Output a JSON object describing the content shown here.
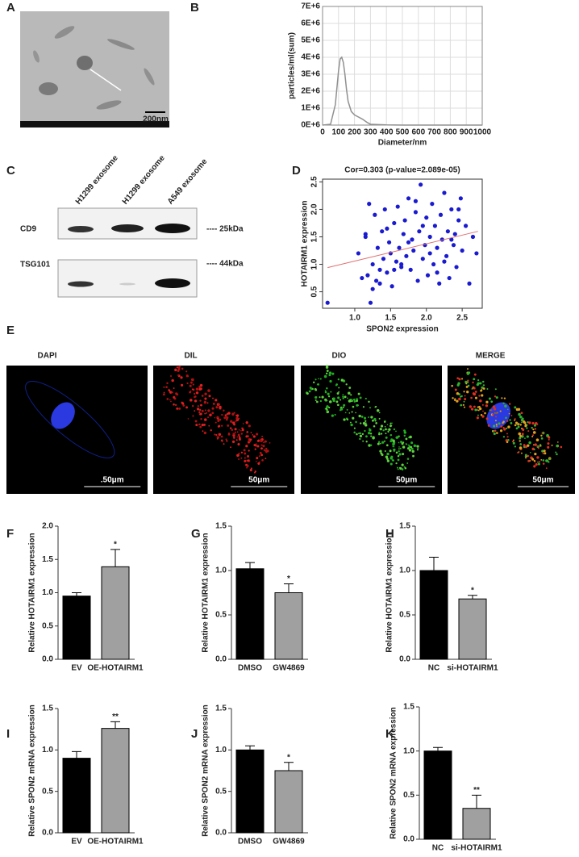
{
  "panel_labels": [
    "A",
    "B",
    "C",
    "D",
    "E",
    "F",
    "G",
    "H",
    "I",
    "J",
    "K"
  ],
  "micrograph": {
    "scale_bar": "200nm"
  },
  "western_blot": {
    "lanes": [
      "H1299 exosome",
      "H1299 exosome",
      "A549 exosome"
    ],
    "rows": [
      {
        "name": "CD9",
        "size": "---- 25kDa"
      },
      {
        "name": "TSG101",
        "size": "---- 44kDa"
      }
    ]
  },
  "fluorescence": {
    "channels": [
      {
        "name": "DAPI",
        "scale_bar": ".50μm"
      },
      {
        "name": "DIL",
        "scale_bar": "50μm"
      },
      {
        "name": "DIO",
        "scale_bar": "50μm"
      },
      {
        "name": "MERGE",
        "scale_bar": "50μm"
      }
    ]
  },
  "chart_data": [
    {
      "type": "line",
      "xlabel": "Diameter/nm",
      "ylabel": "particles/ml(sum)",
      "color": "#909090",
      "grid": true,
      "x": [
        0,
        50,
        80,
        100,
        110,
        120,
        130,
        140,
        150,
        160,
        180,
        200,
        220,
        250,
        280,
        300,
        350,
        400,
        500,
        600,
        700,
        800,
        900,
        1000
      ],
      "values": [
        0,
        50000,
        1200000,
        3200000,
        3900000,
        4000000,
        3700000,
        3000000,
        2100000,
        1400000,
        800000,
        600000,
        500000,
        350000,
        150000,
        50000,
        30000,
        10000,
        0,
        0,
        0,
        0,
        0,
        0
      ],
      "xlim": [
        0,
        1000
      ],
      "xticks": [
        0,
        100,
        200,
        300,
        400,
        500,
        600,
        700,
        800,
        900,
        1000
      ],
      "ylim": [
        0,
        7000000
      ],
      "yticks": [
        {
          "value": 0,
          "label": "0E+6"
        },
        {
          "value": 1000000,
          "label": "1E+6"
        },
        {
          "value": 2000000,
          "label": "2E+6"
        },
        {
          "value": 3000000,
          "label": "3E+6"
        },
        {
          "value": 4000000,
          "label": "4E+6"
        },
        {
          "value": 5000000,
          "label": "5E+6"
        },
        {
          "value": 6000000,
          "label": "6E+6"
        },
        {
          "value": 7000000,
          "label": "7E+6"
        }
      ]
    },
    {
      "type": "scatter",
      "title": "Cor=0.303 (p-value=2.089e-05)",
      "xlabel": "SPON2 expression",
      "ylabel": "HOTAIRM1 expression",
      "color": "#1a1ad0",
      "x": [
        0.62,
        1.05,
        1.1,
        1.15,
        1.18,
        1.2,
        1.22,
        1.25,
        1.28,
        1.3,
        1.32,
        1.35,
        1.38,
        1.4,
        1.42,
        1.45,
        1.48,
        1.5,
        1.52,
        1.55,
        1.58,
        1.6,
        1.62,
        1.65,
        1.68,
        1.7,
        1.72,
        1.75,
        1.78,
        1.8,
        1.82,
        1.85,
        1.88,
        1.9,
        1.92,
        1.95,
        1.98,
        2.0,
        2.02,
        2.05,
        2.08,
        2.1,
        2.12,
        2.15,
        2.18,
        2.2,
        2.22,
        2.25,
        2.28,
        2.3,
        2.32,
        2.35,
        2.38,
        2.4,
        2.42,
        2.45,
        2.48,
        2.5,
        2.55,
        2.6,
        2.65,
        2.7,
        1.25,
        1.45,
        1.65,
        1.85,
        2.05,
        2.25,
        1.55,
        1.75,
        1.95,
        2.15,
        2.35,
        1.35,
        1.15,
        2.45
      ],
      "values": [
        0.3,
        1.2,
        0.75,
        1.5,
        0.8,
        2.1,
        0.3,
        1.0,
        1.9,
        0.7,
        1.3,
        0.9,
        1.6,
        1.1,
        2.0,
        0.85,
        1.4,
        1.2,
        0.6,
        1.75,
        1.05,
        2.05,
        1.3,
        0.95,
        1.55,
        1.8,
        1.15,
        2.2,
        0.9,
        1.45,
        1.25,
        1.95,
        0.7,
        1.6,
        2.45,
        1.1,
        1.35,
        1.85,
        0.8,
        1.5,
        2.1,
        1.0,
        1.7,
        1.3,
        0.65,
        1.9,
        1.45,
        2.3,
        1.15,
        1.6,
        0.75,
        2.0,
        1.35,
        1.55,
        0.95,
        1.8,
        2.2,
        1.25,
        1.7,
        0.65,
        1.5,
        1.2,
        0.55,
        1.65,
        1.0,
        2.15,
        1.2,
        1.05,
        0.9,
        1.4,
        1.7,
        0.85,
        1.45,
        0.65,
        1.55,
        2.0
      ],
      "fit_line": {
        "x": [
          0.62,
          2.72
        ],
        "values": [
          0.94,
          1.6
        ],
        "color": "#e07070"
      },
      "xlim": [
        0.55,
        2.78
      ],
      "xticks": [
        {
          "value": 1,
          "label": "1.0"
        },
        1.5,
        {
          "value": 2,
          "label": "2.0"
        },
        2.5
      ],
      "ylim": [
        0.2,
        2.55
      ],
      "yticks": [
        0.5,
        {
          "value": 1,
          "label": "1.0"
        },
        1.5,
        {
          "value": 2,
          "label": "2.0"
        },
        2.5
      ]
    },
    {
      "type": "bar",
      "ylabel": "Relative HOTAIRM1 expression",
      "categories": [
        "EV",
        "OE-HOTAIRM1"
      ],
      "colors": [
        "#000000",
        "#a0a0a0"
      ],
      "values": [
        0.95,
        1.39
      ],
      "errors": [
        0.05,
        0.26
      ],
      "significance": {
        "index": 1,
        "label": "*"
      },
      "ylim": [
        0,
        2
      ],
      "yticks": [
        {
          "value": 0,
          "label": "0.0"
        },
        0.5,
        {
          "value": 1,
          "label": "1.0"
        },
        1.5,
        {
          "value": 2,
          "label": "2.0"
        }
      ]
    },
    {
      "type": "bar",
      "ylabel": "Relative HOTAIRM1 expression",
      "categories": [
        "DMSO",
        "GW4869"
      ],
      "colors": [
        "#000000",
        "#a0a0a0"
      ],
      "values": [
        1.02,
        0.75
      ],
      "errors": [
        0.07,
        0.1
      ],
      "significance": {
        "index": 1,
        "label": "*"
      },
      "ylim": [
        0,
        1.5
      ],
      "yticks": [
        {
          "value": 0,
          "label": "0.0"
        },
        0.5,
        {
          "value": 1,
          "label": "1.0"
        },
        1.5
      ]
    },
    {
      "type": "bar",
      "ylabel": "Relative HOTAIRM1 expression",
      "categories": [
        "NC",
        "si-HOTAIRM1"
      ],
      "colors": [
        "#000000",
        "#a0a0a0"
      ],
      "values": [
        1.0,
        0.68
      ],
      "errors": [
        0.15,
        0.04
      ],
      "significance": {
        "index": 1,
        "label": "*"
      },
      "ylim": [
        0,
        1.5
      ],
      "yticks": [
        {
          "value": 0,
          "label": "0.0"
        },
        0.5,
        {
          "value": 1,
          "label": "1.0"
        },
        1.5
      ]
    },
    {
      "type": "bar",
      "ylabel": "Relative SPON2 mRNA expression",
      "categories": [
        "EV",
        "OE-HOTAIRM1"
      ],
      "colors": [
        "#000000",
        "#a0a0a0"
      ],
      "values": [
        0.9,
        1.26
      ],
      "errors": [
        0.08,
        0.08
      ],
      "significance": {
        "index": 1,
        "label": "**"
      },
      "ylim": [
        0,
        1.5
      ],
      "yticks": [
        {
          "value": 0,
          "label": "0.0"
        },
        0.5,
        {
          "value": 1,
          "label": "1.0"
        },
        1.5
      ]
    },
    {
      "type": "bar",
      "ylabel": "Relative SPON2 mRNA expression",
      "categories": [
        "DMSO",
        "GW4869"
      ],
      "colors": [
        "#000000",
        "#a0a0a0"
      ],
      "values": [
        1.0,
        0.75
      ],
      "errors": [
        0.05,
        0.1
      ],
      "significance": {
        "index": 1,
        "label": "*"
      },
      "ylim": [
        0,
        1.5
      ],
      "yticks": [
        {
          "value": 0,
          "label": "0.0"
        },
        0.5,
        {
          "value": 1,
          "label": "1.0"
        },
        1.5
      ]
    },
    {
      "type": "bar",
      "ylabel": "Relative SPON2 mRNA expression",
      "categories": [
        "NC",
        "si-HOTAIRM1"
      ],
      "colors": [
        "#000000",
        "#a0a0a0"
      ],
      "values": [
        1.0,
        0.35
      ],
      "errors": [
        0.04,
        0.15
      ],
      "significance": {
        "index": 1,
        "label": "**"
      },
      "ylim": [
        0,
        1.5
      ],
      "yticks": [
        {
          "value": 0,
          "label": "0.0"
        },
        0.5,
        {
          "value": 1,
          "label": "1.0"
        },
        1.5
      ]
    }
  ]
}
